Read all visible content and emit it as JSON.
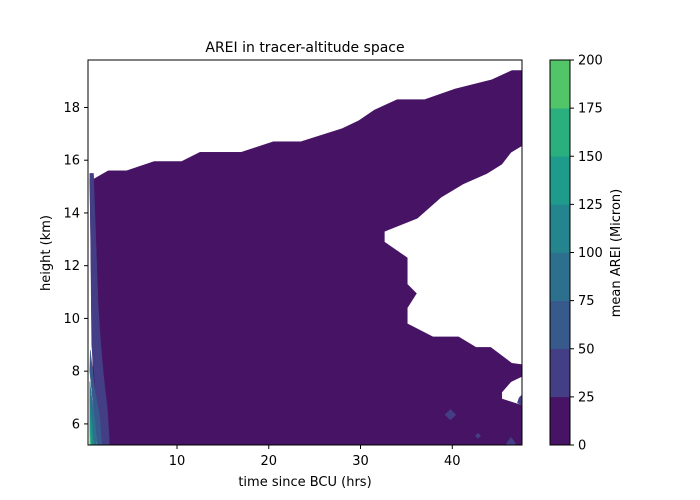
{
  "chart_data": {
    "type": "heatmap",
    "subtype": "filled-contour",
    "title": "AREI in tracer-altitude space",
    "xlabel": "time since BCU (hrs)",
    "ylabel": "height (km)",
    "colorbar_label": "mean AREI (Micron)",
    "xlim": [
      0.3,
      47.6
    ],
    "ylim": [
      5.2,
      19.8
    ],
    "xticks": [
      10,
      20,
      30,
      40
    ],
    "yticks": [
      6,
      8,
      10,
      12,
      14,
      16,
      18
    ],
    "colorbar_ticks": [
      0,
      25,
      50,
      75,
      100,
      125,
      150,
      175,
      200
    ],
    "levels": [
      0,
      25,
      50,
      75,
      100,
      125,
      150,
      175,
      200
    ],
    "level_colors": [
      "#471365",
      "#433e85",
      "#38598c",
      "#2d708e",
      "#25858e",
      "#1e9b8a",
      "#2ab07f",
      "#52c569",
      "#86d549",
      "#c2df23",
      "#e2e418"
    ],
    "grid": false,
    "colormap": "viridis",
    "regions": [
      {
        "band": [
          0,
          25
        ],
        "x": [
          1.0,
          2.5,
          4.5,
          7.5,
          10.5,
          12.5,
          17,
          20.5,
          23.5,
          28,
          29.8,
          31.5,
          34,
          37,
          40.3,
          44.3,
          46.5,
          47.6,
          47.6,
          46.4,
          45.4,
          43.8,
          41.2,
          38.8,
          36.2,
          32.6,
          32.6,
          35.1,
          35.1,
          36.1,
          35.1,
          35.1,
          37.9,
          40.7,
          42.6,
          44.2,
          46.5,
          47.6,
          47.6,
          46.4,
          45.4,
          45.4,
          47.6,
          47.6,
          2.0,
          0.9,
          0.7,
          0.6,
          0.5
        ],
        "y": [
          15.3,
          15.6,
          15.6,
          15.95,
          15.95,
          16.3,
          16.3,
          16.7,
          16.7,
          17.2,
          17.5,
          17.9,
          18.3,
          18.3,
          18.7,
          19.05,
          19.4,
          19.4,
          16.55,
          16.3,
          15.85,
          15.5,
          15.1,
          14.6,
          13.8,
          13.3,
          12.9,
          12.3,
          11.3,
          10.95,
          10.4,
          9.8,
          9.3,
          9.3,
          8.9,
          8.9,
          8.3,
          8.25,
          7.8,
          7.6,
          7.2,
          6.95,
          6.7,
          5.2,
          5.2,
          7.0,
          10.0,
          13.0,
          15.3
        ]
      },
      {
        "band": [
          25,
          50
        ],
        "x": [
          0.9,
          1.0,
          1.2,
          1.4,
          1.7,
          2.0,
          2.4,
          2.6,
          2.6,
          1.6,
          0.7,
          0.6,
          0.5
        ],
        "y": [
          15.5,
          14.5,
          12.5,
          10.5,
          9.0,
          7.8,
          6.6,
          5.5,
          5.2,
          5.2,
          9.0,
          12.5,
          15.5
        ]
      },
      {
        "band": [
          25,
          50
        ],
        "x": [
          39.8,
          40.4,
          39.8,
          39.2
        ],
        "y": [
          6.55,
          6.35,
          6.15,
          6.35
        ]
      },
      {
        "band": [
          25,
          50
        ],
        "x": [
          42.8,
          43.1,
          42.8,
          42.5
        ],
        "y": [
          5.65,
          5.55,
          5.45,
          5.55
        ]
      },
      {
        "band": [
          25,
          50
        ],
        "x": [
          46.4,
          46.9,
          46.4,
          45.9
        ],
        "y": [
          5.5,
          5.25,
          5.0,
          5.25
        ]
      },
      {
        "band": [
          25,
          50
        ],
        "x": [
          47.3,
          47.6,
          47.6,
          47.1
        ],
        "y": [
          7.0,
          7.1,
          6.7,
          6.8
        ]
      },
      {
        "band": [
          50,
          75
        ],
        "x": [
          0.55,
          0.8,
          1.0,
          1.3,
          1.6,
          1.8,
          1.3,
          0.5
        ],
        "y": [
          8.8,
          8.0,
          7.4,
          6.8,
          6.2,
          5.2,
          5.2,
          8.0
        ]
      },
      {
        "band": [
          75,
          100
        ],
        "x": [
          0.5,
          0.75,
          1.0,
          1.25,
          0.85,
          0.5
        ],
        "y": [
          7.6,
          6.9,
          6.3,
          5.2,
          5.2,
          6.8
        ]
      },
      {
        "band": [
          100,
          125
        ],
        "x": [
          0.5,
          0.7,
          0.95,
          0.5
        ],
        "y": [
          6.8,
          6.2,
          5.2,
          5.2
        ]
      },
      {
        "band": [
          125,
          150
        ],
        "x": [
          0.5,
          0.65,
          0.75,
          0.5
        ],
        "y": [
          6.2,
          5.8,
          5.2,
          5.2
        ]
      },
      {
        "band": [
          150,
          175
        ],
        "x": [
          0.5,
          0.58,
          0.62,
          0.5
        ],
        "y": [
          5.75,
          5.5,
          5.2,
          5.2
        ]
      },
      {
        "band": [
          175,
          200
        ],
        "x": [
          0.5,
          0.55,
          0.5
        ],
        "y": [
          5.5,
          5.2,
          5.2
        ]
      }
    ]
  }
}
